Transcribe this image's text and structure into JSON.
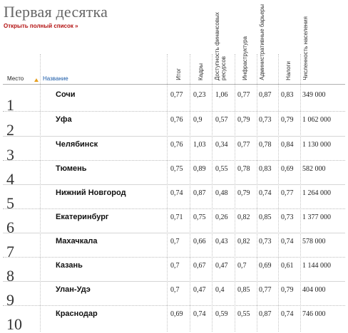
{
  "title": "Первая десятка",
  "full_list_link": "Открыть полный список »",
  "headers": {
    "place": "Место",
    "name": "Название",
    "total": "Итог",
    "staff": "Кадры",
    "finance": "Доступность финансовых ресурсов",
    "infrastructure": "Инфраструктура",
    "admin_barriers": "Административные барьеры",
    "taxes": "Налоги",
    "population": "Численность населения"
  },
  "rows": [
    {
      "rank": "1",
      "city": "Сочи",
      "total": "0,77",
      "staff": "0,23",
      "finance": "1,06",
      "infrastructure": "0,77",
      "admin_barriers": "0,87",
      "taxes": "0,83",
      "population": "349 000"
    },
    {
      "rank": "2",
      "city": "Уфа",
      "total": "0,76",
      "staff": "0,9",
      "finance": "0,57",
      "infrastructure": "0,79",
      "admin_barriers": "0,73",
      "taxes": "0,79",
      "population": "1 062 000"
    },
    {
      "rank": "3",
      "city": "Челябинск",
      "total": "0,76",
      "staff": "1,03",
      "finance": "0,34",
      "infrastructure": "0,77",
      "admin_barriers": "0,78",
      "taxes": "0,84",
      "population": "1 130 000"
    },
    {
      "rank": "4",
      "city": "Тюмень",
      "total": "0,75",
      "staff": "0,89",
      "finance": "0,55",
      "infrastructure": "0,78",
      "admin_barriers": "0,83",
      "taxes": "0,69",
      "population": "582 000"
    },
    {
      "rank": "5",
      "city": "Нижний Новгород",
      "total": "0,74",
      "staff": "0,87",
      "finance": "0,48",
      "infrastructure": "0,79",
      "admin_barriers": "0,74",
      "taxes": "0,77",
      "population": "1 264 000"
    },
    {
      "rank": "6",
      "city": "Екатеринбург",
      "total": "0,71",
      "staff": "0,75",
      "finance": "0,26",
      "infrastructure": "0,82",
      "admin_barriers": "0,85",
      "taxes": "0,73",
      "population": "1 377 000"
    },
    {
      "rank": "7",
      "city": "Махачкала",
      "total": "0,7",
      "staff": "0,66",
      "finance": "0,43",
      "infrastructure": "0,82",
      "admin_barriers": "0,73",
      "taxes": "0,74",
      "population": "578 000"
    },
    {
      "rank": "8",
      "city": "Казань",
      "total": "0,7",
      "staff": "0,67",
      "finance": "0,47",
      "infrastructure": "0,7",
      "admin_barriers": "0,69",
      "taxes": "0,61",
      "population": "1 144 000"
    },
    {
      "rank": "9",
      "city": "Улан-Удэ",
      "total": "0,7",
      "staff": "0,47",
      "finance": "0,4",
      "infrastructure": "0,85",
      "admin_barriers": "0,77",
      "taxes": "0,79",
      "population": "404 000"
    },
    {
      "rank": "10",
      "city": "Краснодар",
      "total": "0,69",
      "staff": "0,74",
      "finance": "0,59",
      "infrastructure": "0,55",
      "admin_barriers": "0,87",
      "taxes": "0,74",
      "population": "746 000"
    }
  ]
}
